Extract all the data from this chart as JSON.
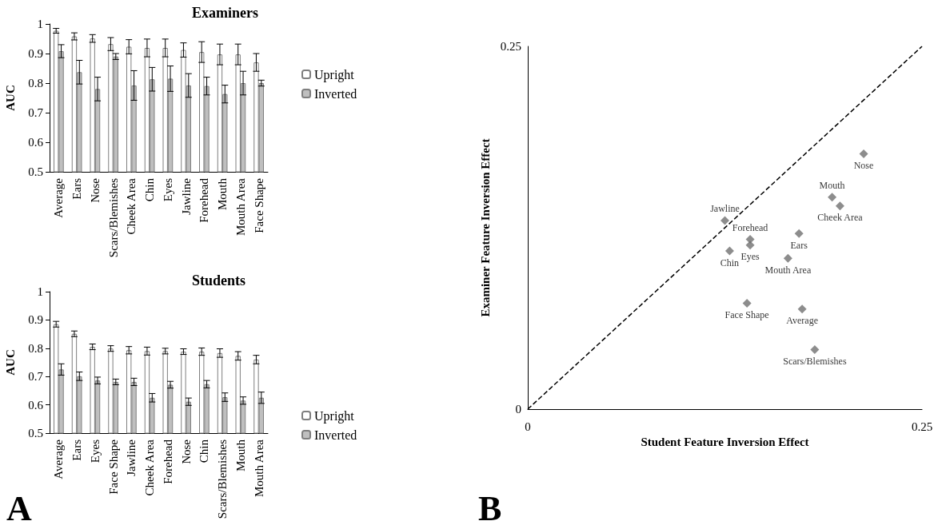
{
  "chart_data": [
    {
      "type": "bar",
      "title": "Examiners",
      "ylabel": "AUC",
      "categories": [
        "Average",
        "Ears",
        "Nose",
        "Scars/Blemishes",
        "Cheek Area",
        "Chin",
        "Eyes",
        "Jawline",
        "Forehead",
        "Mouth",
        "Mouth Area",
        "Face Shape"
      ],
      "ylim": [
        0.5,
        1
      ],
      "yticks": [
        0.5,
        0.6,
        0.7,
        0.8,
        0.9,
        1
      ],
      "legend": "right",
      "series": [
        {
          "name": "Upright",
          "color": "#ffffff",
          "values": [
            0.977,
            0.958,
            0.951,
            0.932,
            0.923,
            0.919,
            0.919,
            0.912,
            0.905,
            0.897,
            0.897,
            0.87
          ],
          "errors": [
            0.008,
            0.012,
            0.013,
            0.022,
            0.024,
            0.03,
            0.03,
            0.024,
            0.035,
            0.035,
            0.035,
            0.03
          ]
        },
        {
          "name": "Inverted",
          "color": "#bfbfbf",
          "values": [
            0.908,
            0.837,
            0.78,
            0.89,
            0.792,
            0.813,
            0.815,
            0.792,
            0.79,
            0.763,
            0.8,
            0.8
          ],
          "errors": [
            0.022,
            0.04,
            0.04,
            0.01,
            0.05,
            0.04,
            0.043,
            0.04,
            0.03,
            0.03,
            0.04,
            0.01
          ]
        }
      ]
    },
    {
      "type": "bar",
      "title": "Students",
      "ylabel": "AUC",
      "categories": [
        "Average",
        "Ears",
        "Eyes",
        "Face Shape",
        "Jawline",
        "Cheek Area",
        "Forehead",
        "Nose",
        "Chin",
        "Scars/Blemishes",
        "Mouth",
        "Mouth Area"
      ],
      "ylim": [
        0.5,
        1
      ],
      "yticks": [
        0.5,
        0.6,
        0.7,
        0.8,
        0.9,
        1
      ],
      "legend": "bottom right",
      "annotations": [
        "A"
      ],
      "series": [
        {
          "name": "Upright",
          "color": "#ffffff",
          "values": [
            0.885,
            0.851,
            0.805,
            0.799,
            0.793,
            0.79,
            0.79,
            0.788,
            0.788,
            0.783,
            0.773,
            0.76
          ],
          "errors": [
            0.01,
            0.01,
            0.01,
            0.01,
            0.013,
            0.014,
            0.01,
            0.01,
            0.013,
            0.015,
            0.015,
            0.015
          ]
        },
        {
          "name": "Inverted",
          "color": "#bfbfbf",
          "values": [
            0.725,
            0.701,
            0.686,
            0.681,
            0.681,
            0.625,
            0.671,
            0.611,
            0.673,
            0.627,
            0.615,
            0.625
          ],
          "errors": [
            0.02,
            0.015,
            0.012,
            0.01,
            0.013,
            0.015,
            0.012,
            0.013,
            0.013,
            0.015,
            0.013,
            0.02
          ]
        }
      ]
    },
    {
      "type": "scatter",
      "xlabel": "Student Feature Inversion Effect",
      "ylabel": "Examiner Feature Inversion Effect",
      "xlim": [
        0,
        0.25
      ],
      "ylim": [
        0,
        0.25
      ],
      "xticks": [
        0,
        0.25
      ],
      "yticks": [
        0,
        0.25
      ],
      "marker": "diamond",
      "annotations": [
        "B"
      ],
      "series": [
        {
          "type": "line",
          "marker": "none",
          "line_style": "dashed",
          "color": "#000000",
          "x": [
            0,
            0.25
          ],
          "values": [
            0,
            0.25
          ]
        },
        {
          "name": "Nose",
          "color": "#707070",
          "x": [
            0.213
          ],
          "values": [
            0.176
          ]
        },
        {
          "name": "Mouth",
          "color": "#707070",
          "x": [
            0.193
          ],
          "values": [
            0.146
          ]
        },
        {
          "name": "Cheek Area",
          "color": "#707070",
          "x": [
            0.198
          ],
          "values": [
            0.14
          ]
        },
        {
          "name": "Jawline",
          "color": "#707070",
          "x": [
            0.125
          ],
          "values": [
            0.13
          ]
        },
        {
          "name": "Forehead",
          "color": "#707070",
          "x": [
            0.141
          ],
          "values": [
            0.117
          ]
        },
        {
          "name": "Eyes",
          "color": "#707070",
          "x": [
            0.141
          ],
          "values": [
            0.113
          ]
        },
        {
          "name": "Chin",
          "color": "#707070",
          "x": [
            0.128
          ],
          "values": [
            0.109
          ]
        },
        {
          "name": "Ears",
          "color": "#707070",
          "x": [
            0.172
          ],
          "values": [
            0.121
          ]
        },
        {
          "name": "Mouth Area",
          "color": "#707070",
          "x": [
            0.165
          ],
          "values": [
            0.104
          ]
        },
        {
          "name": "Face Shape",
          "color": "#707070",
          "x": [
            0.139
          ],
          "values": [
            0.073
          ]
        },
        {
          "name": "Average",
          "color": "#707070",
          "x": [
            0.174
          ],
          "values": [
            0.069
          ]
        },
        {
          "name": "Scars/Blemishes",
          "color": "#707070",
          "x": [
            0.182
          ],
          "values": [
            0.041
          ]
        }
      ]
    }
  ]
}
